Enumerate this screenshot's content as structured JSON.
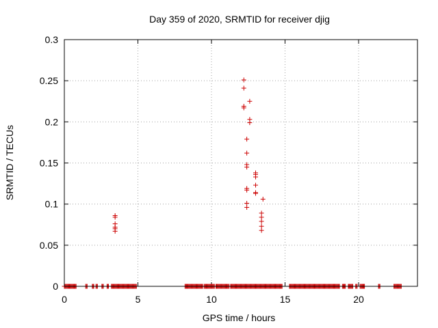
{
  "chart_data": {
    "type": "scatter",
    "title": "Day 359 of 2020, SRMTID for receiver djig",
    "xlabel": "GPS time / hours",
    "ylabel": "SRMTID / TECUs",
    "xlim": [
      0,
      24
    ],
    "ylim": [
      0,
      0.3
    ],
    "grid": true,
    "xticks": [
      0,
      5,
      10,
      15,
      20
    ],
    "xtick_labels": [
      "0",
      "5",
      "10",
      "15",
      "20"
    ],
    "yticks": [
      0,
      0.05,
      0.1,
      0.15,
      0.2,
      0.25,
      0.3
    ],
    "ytick_labels": [
      "0",
      "0.05",
      "0.1",
      "0.15",
      "0.2",
      "0.25",
      "0.3"
    ],
    "marker": "+",
    "color": "#cc0000",
    "points": [
      [
        3.45,
        0.086
      ],
      [
        3.45,
        0.084
      ],
      [
        3.45,
        0.076
      ],
      [
        3.45,
        0.072
      ],
      [
        3.45,
        0.07
      ],
      [
        3.45,
        0.067
      ],
      [
        12.2,
        0.251
      ],
      [
        12.2,
        0.241
      ],
      [
        12.2,
        0.219
      ],
      [
        12.2,
        0.217
      ],
      [
        12.6,
        0.225
      ],
      [
        12.6,
        0.203
      ],
      [
        12.6,
        0.199
      ],
      [
        12.4,
        0.179
      ],
      [
        12.4,
        0.162
      ],
      [
        12.4,
        0.148
      ],
      [
        12.4,
        0.145
      ],
      [
        12.4,
        0.119
      ],
      [
        12.4,
        0.117
      ],
      [
        12.4,
        0.101
      ],
      [
        12.4,
        0.096
      ],
      [
        13.0,
        0.138
      ],
      [
        13.0,
        0.136
      ],
      [
        13.0,
        0.133
      ],
      [
        13.0,
        0.123
      ],
      [
        13.0,
        0.114
      ],
      [
        13.0,
        0.113
      ],
      [
        13.5,
        0.106
      ],
      [
        13.4,
        0.089
      ],
      [
        13.4,
        0.084
      ],
      [
        13.4,
        0.079
      ],
      [
        13.4,
        0.073
      ],
      [
        13.4,
        0.068
      ]
    ],
    "zero_ranges": [
      [
        0.0,
        0.7
      ],
      [
        0.7,
        0.8
      ],
      [
        1.45,
        1.55
      ],
      [
        1.9,
        2.0
      ],
      [
        2.15,
        2.25
      ],
      [
        2.55,
        2.65
      ],
      [
        2.9,
        3.0
      ],
      [
        3.2,
        4.9
      ],
      [
        8.2,
        9.4
      ],
      [
        9.5,
        10.2
      ],
      [
        10.3,
        11.2
      ],
      [
        11.3,
        14.8
      ],
      [
        15.3,
        18.7
      ],
      [
        18.9,
        19.1
      ],
      [
        19.3,
        19.6
      ],
      [
        19.8,
        19.9
      ],
      [
        20.1,
        20.4
      ],
      [
        21.35,
        21.45
      ],
      [
        22.4,
        22.9
      ]
    ]
  }
}
